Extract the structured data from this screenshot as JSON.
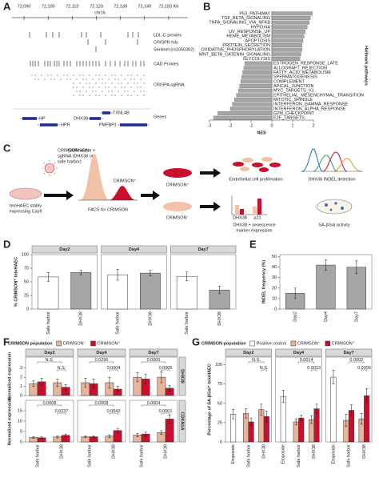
{
  "panel_labels": [
    "A",
    "B",
    "C",
    "D",
    "E",
    "F",
    "G"
  ],
  "panel_c": {
    "cell_label": [
      "teloHAEC stably",
      "expressing Cas9"
    ],
    "vector_label": [
      "CRIMSON vector +",
      "sgRNA (DHX38 or",
      "safe harbor)"
    ],
    "facs_neg": "CRIMSON⁻",
    "facs_pos": "CRIMSON⁺",
    "facs_label": "FACS for CRIMSON",
    "pos_label": "CRIMSON⁺",
    "neg_label": "CRIMSON⁻",
    "proliferation": "Endothelial cell proliferation",
    "indel": "DHX38 INDEL detection",
    "expression": [
      "DHX38 + senescence",
      "marker expression"
    ],
    "expression_bars": [
      "DHX38",
      "p21"
    ],
    "sabgal": "SA-βGal activity"
  },
  "chart_data": [
    {
      "type": "genome_track",
      "title": "chr16",
      "xlim": [
        72085,
        72158
      ],
      "xticks": [
        {
          "value": 72090,
          "label": "72,090"
        },
        {
          "value": 72100,
          "label": "72,100"
        },
        {
          "value": 72110,
          "label": "72,110"
        },
        {
          "value": 72120,
          "label": "72,120"
        },
        {
          "value": 72130,
          "label": "72,130"
        },
        {
          "value": 72140,
          "label": "72,140"
        },
        {
          "value": 72150,
          "label": "72,150 Kb"
        }
      ],
      "tracks": [
        "LDL-C proxies",
        "CRISPR hits",
        "Sentinel (rs1050362)",
        "CAD Proxies",
        "CRISPA sgRNA",
        "Genes"
      ],
      "genes": [
        "HP",
        "HPR",
        "DHX38",
        "TXNL4B",
        "PMFBP1"
      ]
    },
    {
      "type": "hbar",
      "xlabel": "NES",
      "ylabel": "Hallmark pathways",
      "color": "#a6a6a6",
      "categories": [
        "P53_PATHWAY",
        "TGF_BETA_SIGNALING",
        "TNFA_SIGNALING_VIA_NFKB",
        "HYPOXIA",
        "UV_RESPONSE_UP",
        "HEME_METABOLISM",
        "APOPTOSIS",
        "PROTEIN_SECRETION",
        "OXIDATIVE_PHOSPHORYLATION",
        "WNT_BETA_CATENIN_SIGNALING",
        "GLYCOLYSIS",
        "ESTROGEN_RESPONSE_LATE",
        "ALLOGRAFT_REJECTION",
        "FATTY_ACID_METABOLISM",
        "SPERMATOGENESIS",
        "COMPLEMENT",
        "APICAL_JUNCTION",
        "MYC_TARGETS_V1",
        "EPITHELIAL_MESENCHYMAL_TRANSITION",
        "MITOTIC_SPINDLE",
        "INTERFERON_GAMMA_RESPONSE",
        "INTERFERON_ALPHA_RESPONSE",
        "G2M_CHECKPOINT",
        "E2F_TARGETS"
      ],
      "values": [
        1.95,
        1.85,
        1.8,
        1.7,
        1.6,
        1.55,
        1.5,
        1.45,
        1.45,
        1.4,
        1.35,
        -1.3,
        -1.35,
        -1.4,
        -1.45,
        -1.5,
        -1.55,
        -1.6,
        -1.7,
        -1.8,
        -1.9,
        -2.0,
        -2.6,
        -2.8
      ],
      "xlim": [
        -3,
        2
      ],
      "xticks": [
        -3,
        -2,
        -1,
        0,
        1,
        2
      ]
    },
    {
      "type": "faceted_bar",
      "facets": [
        "Day2",
        "Day4",
        "Day7"
      ],
      "categories": [
        "Safe harbor",
        "DHX38",
        "Safe harbor",
        "DHX38",
        "Safe harbor",
        "DHX38"
      ],
      "values": [
        59,
        67,
        63,
        66,
        60,
        35
      ],
      "errors": [
        8,
        4,
        10,
        5,
        8,
        7
      ],
      "colors": [
        "#ffffff",
        "#a6a6a6"
      ],
      "ylim": [
        0,
        100
      ],
      "yticks": [
        0,
        25,
        50,
        75,
        100
      ],
      "ylabel": "% CRIMSON⁺ teloHAEC"
    },
    {
      "type": "faceted_bar",
      "categories": [
        "Day2",
        "Day4",
        "Day7"
      ],
      "values": [
        15,
        42,
        40
      ],
      "errors": [
        5,
        5,
        6
      ],
      "colors": [
        "#a6a6a6"
      ],
      "ylim": [
        0,
        52
      ],
      "yticks": [
        0,
        10,
        20,
        30,
        40,
        50
      ],
      "ylabel": "INDEL frequency (%)"
    },
    {
      "type": "faceted_bar",
      "legend_title": "CRIMSON population",
      "facets": [
        "Day2",
        "Day4",
        "Day7"
      ],
      "series": [
        {
          "name": "CRIMSON⁻",
          "color": "#e8b59a",
          "values": [
            1.3,
            1.4,
            1.4,
            1.4,
            2.0,
            2.0
          ],
          "errors": [
            0.3,
            0.4,
            0.5,
            0.6,
            0.5,
            0.6
          ]
        },
        {
          "name": "CRIMSON⁺",
          "color": "#c8102e",
          "values": [
            1.5,
            0.9,
            1.3,
            0.7,
            1.8,
            0.8
          ],
          "errors": [
            0.4,
            0.3,
            0.5,
            0.3,
            0.5,
            0.3
          ]
        }
      ],
      "ylim": [
        0,
        4.2
      ],
      "yticks": [
        0,
        1,
        2,
        3
      ],
      "ylabel": "Normalized expression",
      "strip": "DHX38",
      "annotations": [
        "N.S.",
        "N.S.",
        "0.0296",
        "0.0004",
        "0.0005",
        "0.0005"
      ]
    },
    {
      "type": "faceted_bar",
      "categories": [
        "Safe harbor",
        "DHX38",
        "Safe harbor",
        "DHX38",
        "Safe harbor",
        "DHX38"
      ],
      "series": [
        {
          "color": "#e8b59a",
          "values": [
            2.2,
            2.4,
            2.5,
            2.8,
            3.3,
            4.5
          ],
          "errors": [
            0.4,
            0.5,
            0.5,
            0.6,
            0.8,
            0.9
          ]
        },
        {
          "color": "#c8102e",
          "values": [
            2.0,
            3.2,
            2.5,
            5.5,
            3.8,
            11
          ],
          "errors": [
            0.4,
            0.6,
            0.5,
            1.0,
            0.9,
            2.0
          ]
        }
      ],
      "ylim": [
        0,
        20
      ],
      "yticks": [
        0,
        5,
        10,
        15
      ],
      "ylabel": "Normalized expression",
      "strip": "CDKN1A",
      "annotations": [
        "0.0008",
        "0.0237",
        "0.0008",
        "0.0042",
        "0.0004",
        "0.0001"
      ]
    },
    {
      "type": "faceted_bar",
      "legend_title": "CRIMSON population",
      "facets": [
        "Day2",
        "Day4",
        "Day7"
      ],
      "categories": [
        "Etoposide",
        "Safe harbor",
        "DHX38",
        "Etoposide",
        "Safe harbor",
        "DHX38",
        "Etoposide",
        "Safe harbor",
        "DHX38"
      ],
      "series": [
        {
          "name": "Positive control",
          "color": "#ffffff",
          "values": [
            36,
            null,
            null,
            59,
            null,
            null,
            84,
            null,
            null
          ],
          "errors": [
            6,
            null,
            null,
            8,
            null,
            null,
            9,
            null,
            null
          ]
        },
        {
          "name": "CRIMSON⁻",
          "color": "#e8b59a",
          "values": [
            null,
            37,
            42,
            null,
            26,
            29,
            null,
            28,
            30
          ],
          "errors": [
            null,
            6,
            7,
            null,
            4,
            5,
            null,
            8,
            7
          ]
        },
        {
          "name": "CRIMSON⁺",
          "color": "#c8102e",
          "values": [
            null,
            26,
            33,
            null,
            31,
            43,
            null,
            41,
            60
          ],
          "errors": [
            null,
            5,
            7,
            null,
            4,
            6,
            null,
            7,
            9
          ]
        }
      ],
      "ylim": [
        0,
        110
      ],
      "yticks": [
        0,
        25,
        50,
        75,
        100
      ],
      "ylabel": "Percentage of SA-βGal⁺ teloHAEC",
      "annotations": [
        "N.S.",
        "N.S.",
        "0.0014",
        "0.0013",
        "0.0002",
        "0.0006"
      ]
    }
  ]
}
